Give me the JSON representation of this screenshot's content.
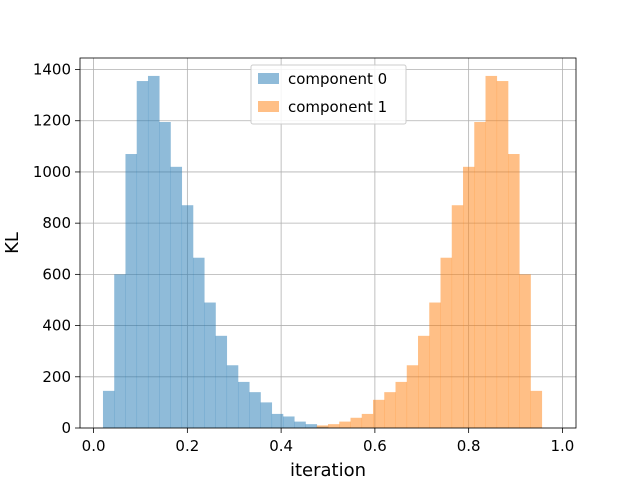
{
  "chart_data": {
    "type": "bar",
    "subtype": "histogram",
    "xlabel": "iteration",
    "ylabel": "KL",
    "xlim": [
      -0.029,
      1.029
    ],
    "ylim": [
      0,
      1445
    ],
    "xticks": [
      0.0,
      0.2,
      0.4,
      0.6,
      0.8,
      1.0
    ],
    "xtick_labels": [
      "0.0",
      "0.2",
      "0.4",
      "0.6",
      "0.8",
      "1.0"
    ],
    "yticks": [
      0,
      200,
      400,
      600,
      800,
      1000,
      1200,
      1400
    ],
    "ytick_labels": [
      "0",
      "200",
      "400",
      "600",
      "800",
      "1000",
      "1200",
      "1400"
    ],
    "grid": true,
    "legend_position": "upper center",
    "bin_edges": [
      0.02,
      0.044,
      0.068,
      0.092,
      0.116,
      0.14,
      0.164,
      0.188,
      0.212,
      0.236,
      0.26,
      0.284,
      0.308,
      0.332,
      0.356,
      0.38,
      0.404,
      0.428,
      0.452,
      0.476,
      0.5,
      0.524,
      0.548,
      0.572,
      0.596,
      0.62,
      0.644,
      0.668,
      0.692,
      0.716,
      0.74,
      0.764,
      0.788,
      0.812,
      0.836,
      0.86,
      0.884,
      0.908,
      0.932,
      0.956,
      0.98
    ],
    "series": [
      {
        "name": "component 0",
        "color": "#1f77b4",
        "alpha": 0.5,
        "values": [
          145,
          600,
          1070,
          1355,
          1375,
          1195,
          1020,
          870,
          665,
          490,
          360,
          245,
          180,
          140,
          100,
          55,
          45,
          25,
          15,
          5,
          0,
          0,
          0,
          0,
          0,
          0,
          0,
          0,
          0,
          0,
          0,
          0,
          0,
          0,
          0,
          0,
          0,
          0,
          0,
          0
        ]
      },
      {
        "name": "component 1",
        "color": "#ff7f0e",
        "alpha": 0.5,
        "values": [
          0,
          0,
          0,
          0,
          0,
          0,
          0,
          0,
          0,
          0,
          0,
          0,
          0,
          0,
          0,
          0,
          0,
          0,
          0,
          10,
          15,
          25,
          40,
          55,
          110,
          140,
          180,
          245,
          360,
          490,
          665,
          870,
          1020,
          1195,
          1375,
          1355,
          1070,
          600,
          145,
          0
        ]
      }
    ]
  }
}
